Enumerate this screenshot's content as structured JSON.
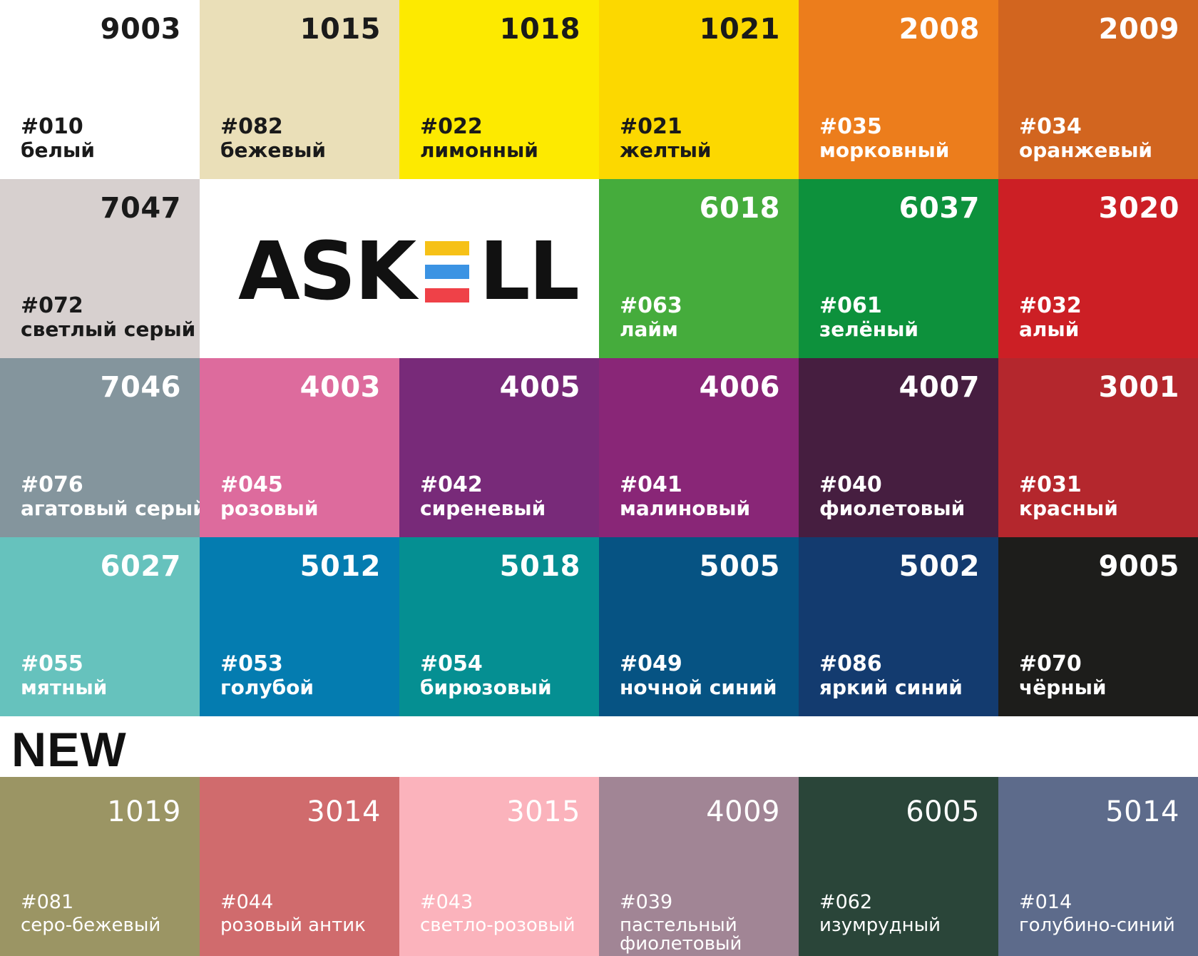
{
  "palette": [
    {
      "code": "9003",
      "num": "#010",
      "name": "белый",
      "bg": "#ffffff",
      "fg": "#1a1a1a"
    },
    {
      "code": "1015",
      "num": "#082",
      "name": "бежевый",
      "bg": "#eadfb8",
      "fg": "#1a1a1a"
    },
    {
      "code": "1018",
      "num": "#022",
      "name": "лимонный",
      "bg": "#fdea00",
      "fg": "#1a1a1a"
    },
    {
      "code": "1021",
      "num": "#021",
      "name": "желтый",
      "bg": "#fcd800",
      "fg": "#1a1a1a"
    },
    {
      "code": "2008",
      "num": "#035",
      "name": "морковный",
      "bg": "#ec7d1c",
      "fg": "#ffffff"
    },
    {
      "code": "2009",
      "num": "#034",
      "name": "оранжевый",
      "bg": "#d2651f",
      "fg": "#ffffff"
    },
    {
      "code": "7047",
      "num": "#072",
      "name": "светлый серый",
      "bg": "#d7d0cf",
      "fg": "#1a1a1a"
    },
    {
      "code": "6018",
      "num": "#063",
      "name": "лайм",
      "bg": "#45ac3c",
      "fg": "#ffffff"
    },
    {
      "code": "6037",
      "num": "#061",
      "name": "зелёный",
      "bg": "#0d913c",
      "fg": "#ffffff"
    },
    {
      "code": "3020",
      "num": "#032",
      "name": "алый",
      "bg": "#cc1f25",
      "fg": "#ffffff"
    },
    {
      "code": "7046",
      "num": "#076",
      "name": "агатовый серый",
      "bg": "#84959d",
      "fg": "#ffffff"
    },
    {
      "code": "4003",
      "num": "#045",
      "name": "розовый",
      "bg": "#dd6b9d",
      "fg": "#ffffff"
    },
    {
      "code": "4005",
      "num": "#042",
      "name": "сиреневый",
      "bg": "#782a79",
      "fg": "#ffffff"
    },
    {
      "code": "4006",
      "num": "#041",
      "name": "малиновый",
      "bg": "#892677",
      "fg": "#ffffff"
    },
    {
      "code": "4007",
      "num": "#040",
      "name": "фиолетовый",
      "bg": "#461e40",
      "fg": "#ffffff"
    },
    {
      "code": "3001",
      "num": "#031",
      "name": "красный",
      "bg": "#b4272d",
      "fg": "#ffffff"
    },
    {
      "code": "6027",
      "num": "#055",
      "name": "мятный",
      "bg": "#66c2bd",
      "fg": "#ffffff"
    },
    {
      "code": "5012",
      "num": "#053",
      "name": "голубой",
      "bg": "#047cb0",
      "fg": "#ffffff"
    },
    {
      "code": "5018",
      "num": "#054",
      "name": "бирюзовый",
      "bg": "#058f92",
      "fg": "#ffffff"
    },
    {
      "code": "5005",
      "num": "#049",
      "name": "ночной синий",
      "bg": "#065383",
      "fg": "#ffffff"
    },
    {
      "code": "5002",
      "num": "#086",
      "name": "яркий синий",
      "bg": "#133b6f",
      "fg": "#ffffff"
    },
    {
      "code": "9005",
      "num": "#070",
      "name": "чёрный",
      "bg": "#1d1d1b",
      "fg": "#ffffff"
    }
  ],
  "logo": {
    "text_left": "ASK",
    "text_right": "LL",
    "e_bar_colors": [
      "#f6c117",
      "#3b93e3",
      "#ef4148"
    ]
  },
  "new_section": {
    "label": "NEW",
    "swatches": [
      {
        "code": "1019",
        "num": "#081",
        "name": "серо-бежевый",
        "bg": "#9b9564",
        "fg": "#ffffff"
      },
      {
        "code": "3014",
        "num": "#044",
        "name": "розовый антик",
        "bg": "#d06b6d",
        "fg": "#ffffff"
      },
      {
        "code": "3015",
        "num": "#043",
        "name": "светло-розовый",
        "bg": "#fbb3bc",
        "fg": "#ffffff"
      },
      {
        "code": "4009",
        "num": "#039",
        "name": "пастельный фиолетовый",
        "bg": "#a18595",
        "fg": "#ffffff"
      },
      {
        "code": "6005",
        "num": "#062",
        "name": "изумрудный",
        "bg": "#2a4539",
        "fg": "#ffffff"
      },
      {
        "code": "5014",
        "num": "#014",
        "name": "голубино-синий",
        "bg": "#5d6b8b",
        "fg": "#ffffff"
      }
    ]
  }
}
